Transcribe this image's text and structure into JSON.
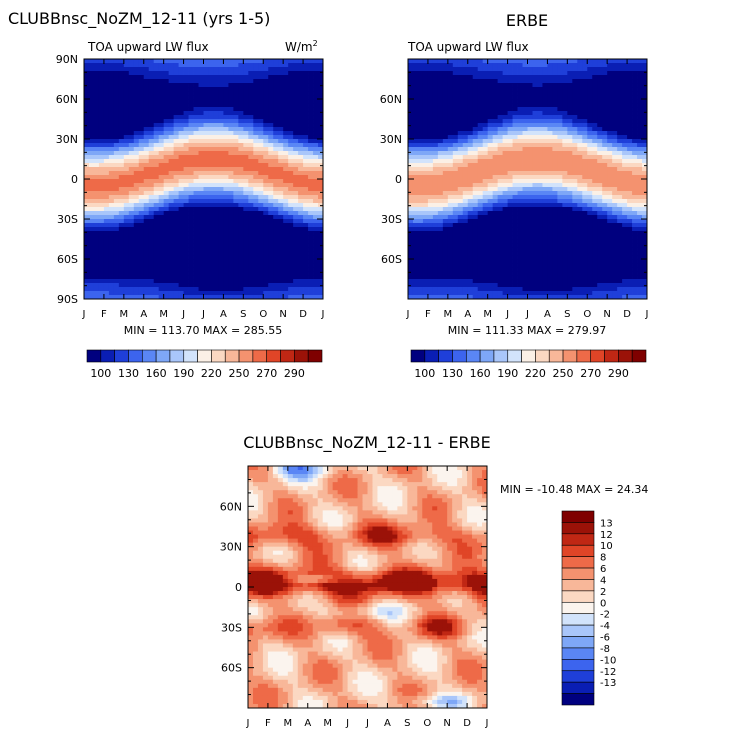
{
  "chart_data": [
    {
      "type": "heatmap",
      "id": "model",
      "title": "CLUBBnsc_NoZM_12-11 (yrs 1-5)",
      "subtitle": "TOA upward LW flux",
      "units_base": "W/m",
      "units_exp": "2",
      "x_ticks": [
        "J",
        "F",
        "M",
        "A",
        "M",
        "J",
        "J",
        "A",
        "S",
        "O",
        "N",
        "D",
        "J"
      ],
      "y_ticks": [
        "90N",
        "60N",
        "30N",
        "0",
        "30S",
        "60S",
        "90S"
      ],
      "y_values": [
        90,
        60,
        30,
        0,
        -30,
        -60,
        -90
      ],
      "ylim": [
        -90,
        90
      ],
      "stats": "MIN = 113.70 MAX = 285.55",
      "min": 113.7,
      "max": 285.55,
      "colorbar_labels": [
        "100",
        "130",
        "160",
        "190",
        "220",
        "250",
        "270",
        "290"
      ]
    },
    {
      "type": "heatmap",
      "id": "obs",
      "title": "ERBE",
      "subtitle": "TOA upward LW flux",
      "x_ticks": [
        "J",
        "F",
        "M",
        "A",
        "M",
        "J",
        "J",
        "A",
        "S",
        "O",
        "N",
        "D",
        "J"
      ],
      "y_ticks": [
        "60N",
        "30N",
        "0",
        "30S",
        "60S"
      ],
      "y_values": [
        60,
        30,
        0,
        -30,
        -60
      ],
      "ylim": [
        -90,
        90
      ],
      "stats": "MIN = 111.33 MAX = 279.97",
      "min": 111.33,
      "max": 279.97,
      "colorbar_labels": [
        "100",
        "130",
        "160",
        "190",
        "220",
        "250",
        "270",
        "290"
      ]
    },
    {
      "type": "heatmap",
      "id": "diff",
      "title": "CLUBBnsc_NoZM_12-11 - ERBE",
      "x_ticks": [
        "J",
        "F",
        "M",
        "A",
        "M",
        "J",
        "J",
        "A",
        "S",
        "O",
        "N",
        "D",
        "J"
      ],
      "y_ticks": [
        "60N",
        "30N",
        "0",
        "30S",
        "60S"
      ],
      "y_values": [
        60,
        30,
        0,
        -30,
        -60
      ],
      "ylim": [
        -90,
        90
      ],
      "stats": "MIN = -10.48 MAX =  24.34",
      "min": -10.48,
      "max": 24.34,
      "colorbar_labels": [
        "13",
        "12",
        "10",
        "8",
        "6",
        "4",
        "2",
        "0",
        "-2",
        "-4",
        "-6",
        "-8",
        "-10",
        "-12",
        "-13"
      ]
    }
  ],
  "palette": {
    "flux": [
      "#00007f",
      "#0a1eb4",
      "#1f3fd9",
      "#3c64ee",
      "#5a86f5",
      "#7ea7f7",
      "#a9c6fa",
      "#d2e3fb",
      "#fbf0e6",
      "#fbd8c2",
      "#f8b799",
      "#f4926f",
      "#ee6a48",
      "#e04527",
      "#c02714",
      "#9b1208",
      "#7f0000"
    ],
    "diff": [
      "#00007f",
      "#0a1eb4",
      "#1f3fd9",
      "#3c64ee",
      "#5a86f5",
      "#7ea7f7",
      "#a9c6fa",
      "#d2e3fb",
      "#fbf4ee",
      "#fbd8c2",
      "#f8b799",
      "#f4926f",
      "#ee6a48",
      "#e04527",
      "#c02714",
      "#9b1208",
      "#7f0000"
    ]
  }
}
